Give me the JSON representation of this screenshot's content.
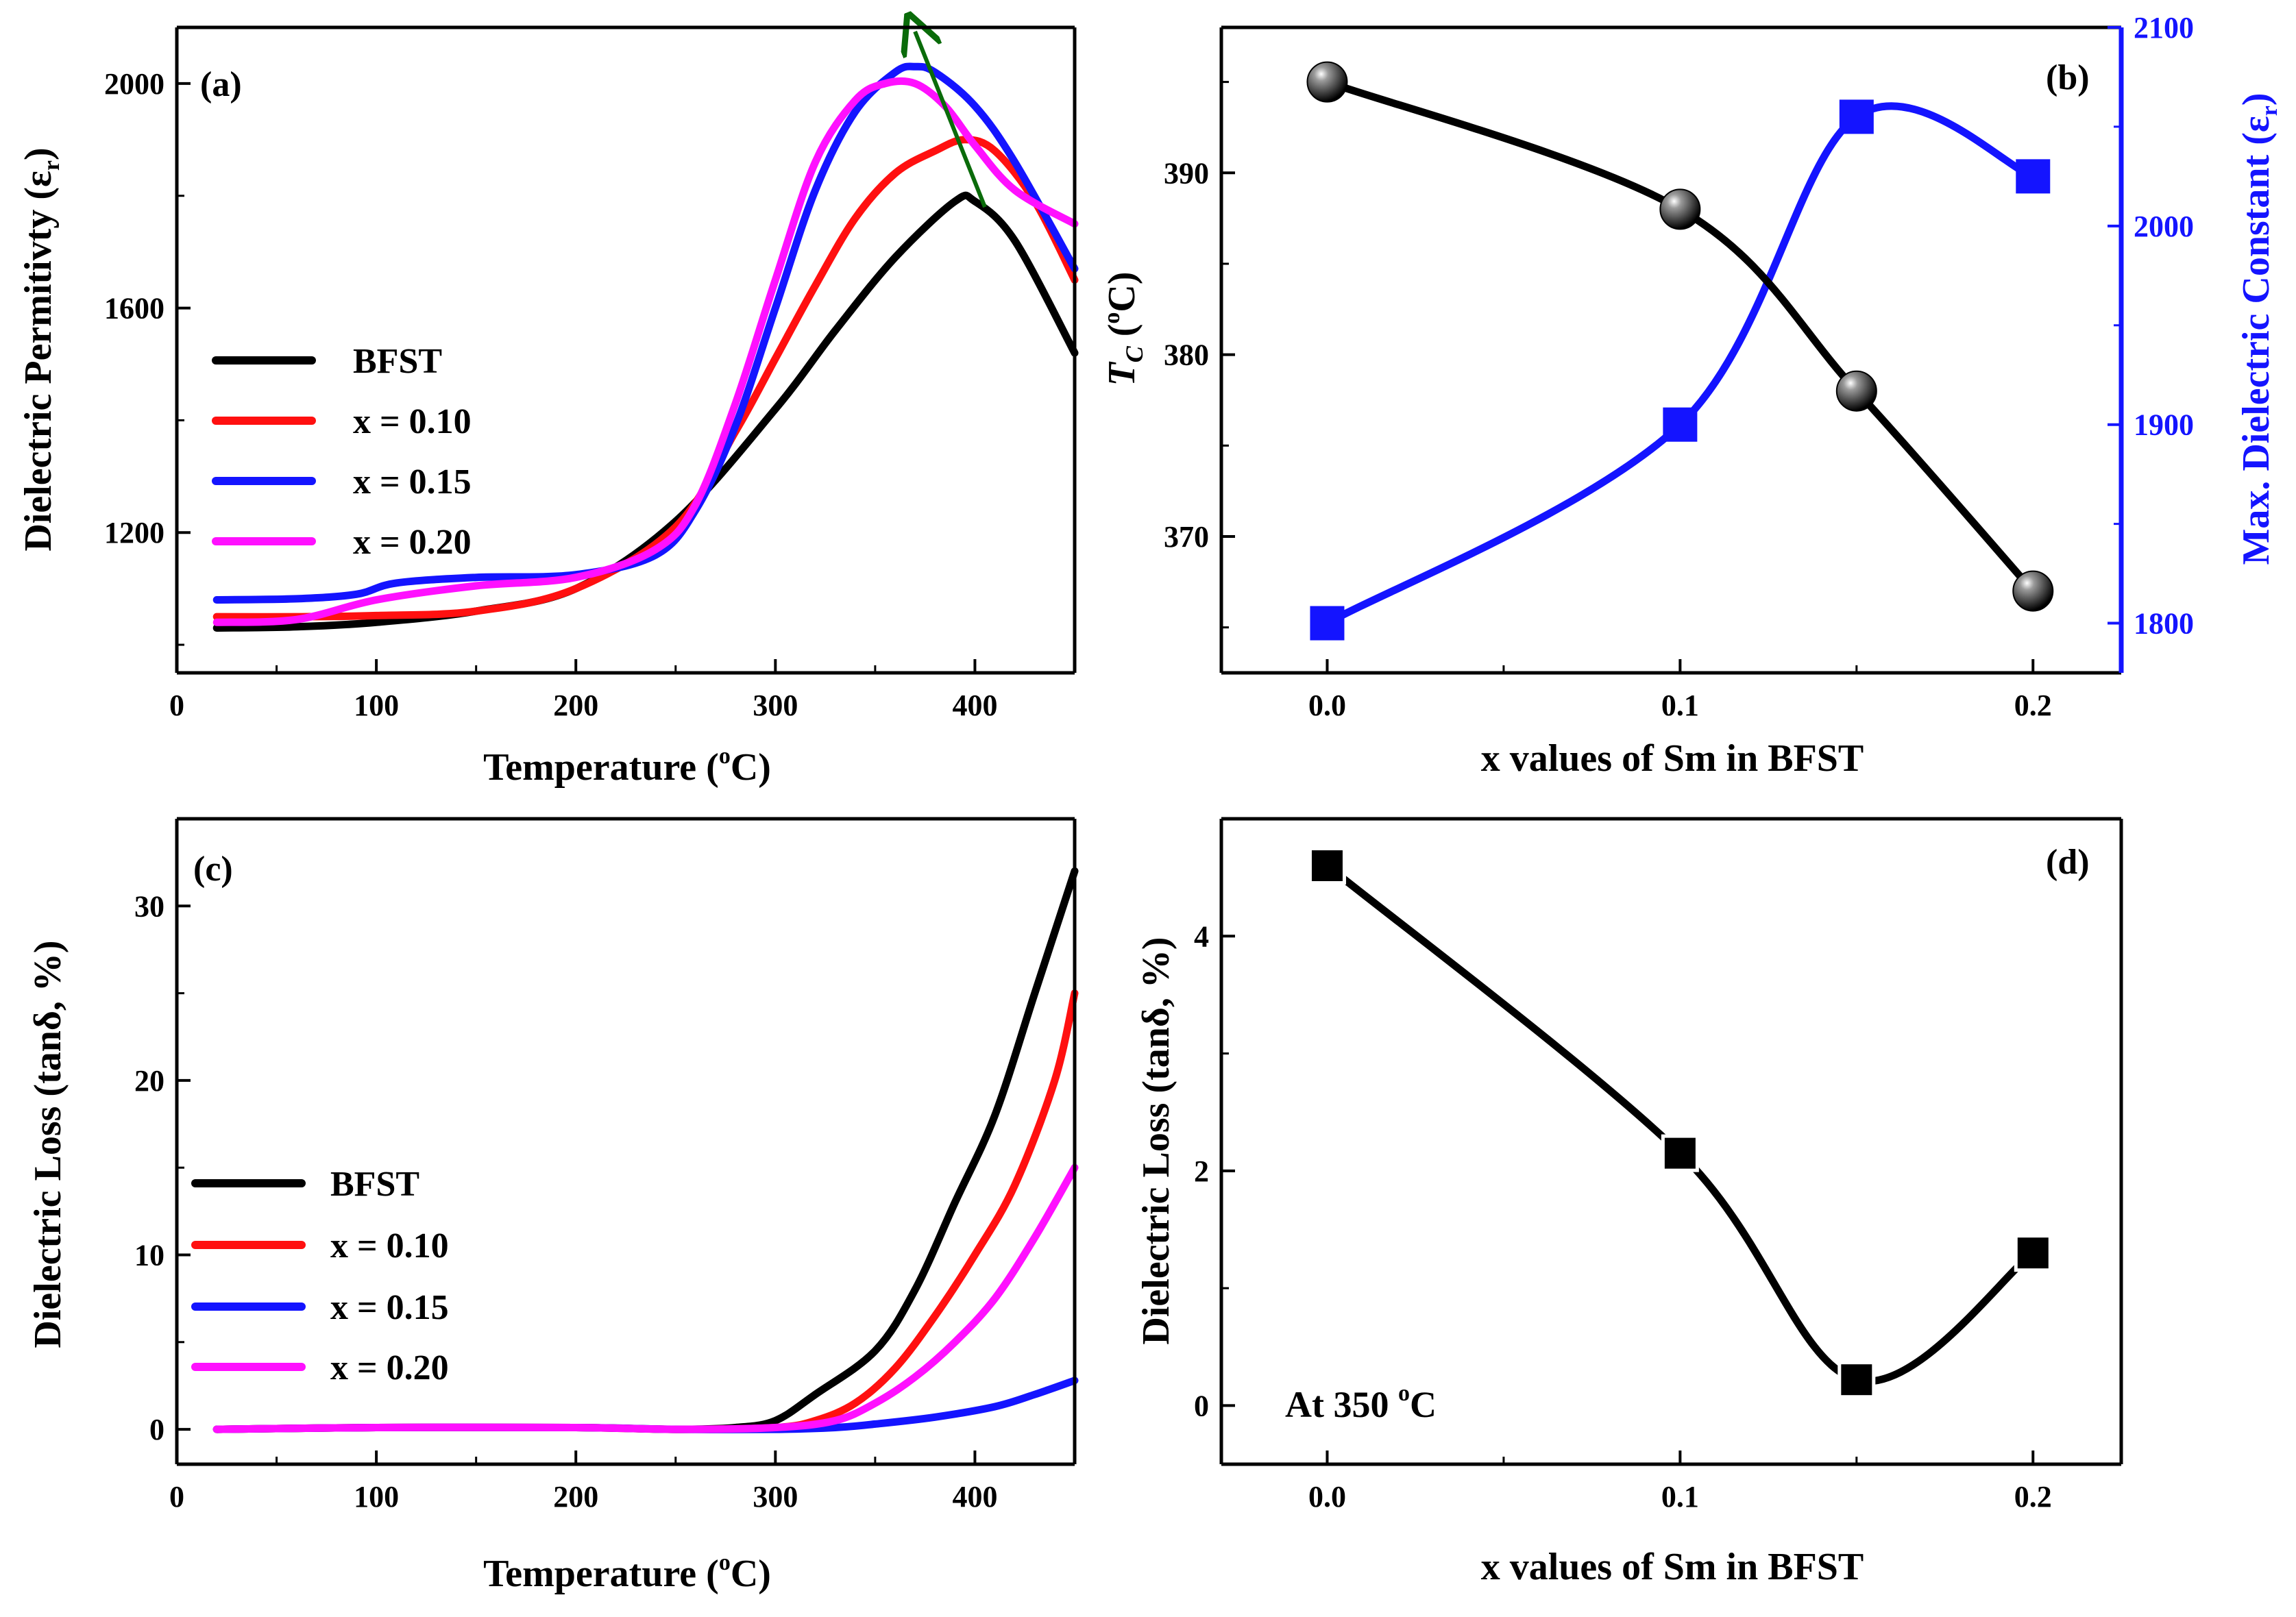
{
  "colors": {
    "black": "#000000",
    "red": "#ff1010",
    "blue": "#1414ff",
    "magenta": "#ff10ff",
    "green": "#0a6b0a",
    "sphere_light": "#9a9a9a"
  },
  "chart_data": [
    {
      "panel": "(a)",
      "type": "line",
      "title": "",
      "xlabel": "Temperature (",
      "xlabel_sup": "o",
      "xlabel_tail": "C)",
      "ylabel": "Dielectric Permitivty (ε",
      "ylabel_sub": "r",
      "ylabel_tail": ")",
      "xlim": [
        0,
        450
      ],
      "ylim": [
        950,
        2100
      ],
      "xticks": [
        "0",
        "100",
        "200",
        "300",
        "400"
      ],
      "yticks": [
        "1200",
        "1600",
        "2000"
      ],
      "xtick_values": [
        0,
        100,
        200,
        300,
        400
      ],
      "ytick_values": [
        1200,
        1600,
        2000
      ],
      "legend_position": "middle-left",
      "series": [
        {
          "name": "BFST",
          "color": "#000000",
          "x": [
            20,
            60,
            100,
            150,
            200,
            250,
            300,
            330,
            360,
            390,
            400,
            420,
            450
          ],
          "y": [
            1030,
            1032,
            1040,
            1060,
            1100,
            1220,
            1420,
            1560,
            1690,
            1790,
            1790,
            1720,
            1520
          ]
        },
        {
          "name": "x = 0.10",
          "color": "#ff1010",
          "x": [
            20,
            60,
            100,
            150,
            200,
            250,
            280,
            300,
            320,
            340,
            360,
            380,
            395,
            410,
            430,
            450
          ],
          "y": [
            1050,
            1050,
            1052,
            1060,
            1100,
            1210,
            1380,
            1510,
            1640,
            1760,
            1840,
            1880,
            1900,
            1880,
            1790,
            1650
          ]
        },
        {
          "name": "x = 0.15",
          "color": "#1414ff",
          "x": [
            20,
            60,
            90,
            110,
            150,
            200,
            240,
            260,
            280,
            300,
            320,
            340,
            360,
            370,
            380,
            400,
            420,
            450
          ],
          "y": [
            1080,
            1082,
            1090,
            1110,
            1120,
            1125,
            1160,
            1240,
            1390,
            1600,
            1810,
            1950,
            2020,
            2030,
            2020,
            1960,
            1860,
            1670
          ]
        },
        {
          "name": "x = 0.20",
          "color": "#ff10ff",
          "x": [
            20,
            60,
            100,
            150,
            200,
            240,
            260,
            280,
            300,
            320,
            340,
            355,
            370,
            385,
            400,
            420,
            450
          ],
          "y": [
            1040,
            1045,
            1080,
            1105,
            1120,
            1170,
            1250,
            1430,
            1650,
            1860,
            1970,
            2000,
            2000,
            1960,
            1890,
            1810,
            1750
          ]
        }
      ],
      "annotations": [
        {
          "type": "arrow",
          "color": "#0a6b0a",
          "from": [
            405,
            1780
          ],
          "to": [
            370,
            2100
          ]
        }
      ]
    },
    {
      "panel": "(b)",
      "type": "scatter-line",
      "title": "",
      "xlabel": "x values of Sm in BFST",
      "ylabel": "T",
      "ylabel_sub": "C",
      "ylabel_mid": " (",
      "ylabel_sup": "o",
      "ylabel_tail": "C)",
      "ylabel_right": "Max. Dielectric Constant (ε",
      "ylabel_right_sub": "r",
      "ylabel_right_tail": ")",
      "xlim": [
        -0.03,
        0.225
      ],
      "ylim": [
        362.5,
        398
      ],
      "ylim_right": [
        1775,
        2100
      ],
      "xticks": [
        "0.0",
        "0.1",
        "0.2"
      ],
      "xtick_values": [
        0,
        0.1,
        0.2
      ],
      "yticks": [
        "370",
        "380",
        "390"
      ],
      "ytick_values": [
        370,
        380,
        390
      ],
      "yticks_right": [
        "1800",
        "1900",
        "2000",
        "2100"
      ],
      "ytick_values_right": [
        1800,
        1900,
        2000,
        2100
      ],
      "series": [
        {
          "name": "Tc",
          "axis": "left",
          "marker": "sphere",
          "color": "#000000",
          "x": [
            0.0,
            0.1,
            0.15,
            0.2
          ],
          "y": [
            395,
            388,
            378,
            367
          ]
        },
        {
          "name": "Max. Dielectric Constant",
          "axis": "right",
          "marker": "square",
          "color": "#1414ff",
          "x": [
            0.0,
            0.1,
            0.15,
            0.2
          ],
          "y": [
            1800,
            1900,
            2055,
            2025
          ]
        }
      ]
    },
    {
      "panel": "(c)",
      "type": "line",
      "title": "",
      "xlabel": "Temperature (",
      "xlabel_sup": "o",
      "xlabel_tail": "C)",
      "ylabel": "Dielectric Loss (tanδ, %)",
      "xlim": [
        0,
        450
      ],
      "ylim": [
        -2,
        35
      ],
      "xticks": [
        "0",
        "100",
        "200",
        "300",
        "400"
      ],
      "xtick_values": [
        0,
        100,
        200,
        300,
        400
      ],
      "yticks": [
        "0",
        "10",
        "20",
        "30"
      ],
      "ytick_values": [
        0,
        10,
        20,
        30
      ],
      "legend_position": "lower-left",
      "series": [
        {
          "name": "BFST",
          "color": "#000000",
          "x": [
            20,
            100,
            200,
            250,
            280,
            300,
            320,
            350,
            370,
            390,
            410,
            430,
            450
          ],
          "y": [
            0,
            0.1,
            0.1,
            0,
            0.1,
            0.5,
            2,
            4.5,
            8,
            13,
            18,
            25,
            32
          ]
        },
        {
          "name": "x = 0.10",
          "color": "#ff1010",
          "x": [
            20,
            100,
            200,
            250,
            300,
            320,
            340,
            360,
            380,
            400,
            420,
            440,
            450
          ],
          "y": [
            0,
            0.1,
            0.1,
            0,
            0.1,
            0.5,
            1.5,
            3.5,
            6.5,
            10,
            14,
            20,
            25
          ]
        },
        {
          "name": "x = 0.15",
          "color": "#1414ff",
          "x": [
            20,
            100,
            200,
            250,
            300,
            330,
            350,
            380,
            410,
            430,
            450
          ],
          "y": [
            0,
            0.1,
            0.1,
            0,
            0,
            0.1,
            0.3,
            0.7,
            1.3,
            2,
            2.8
          ]
        },
        {
          "name": "x = 0.20",
          "color": "#ff10ff",
          "x": [
            20,
            100,
            200,
            250,
            300,
            330,
            350,
            370,
            390,
            410,
            430,
            450
          ],
          "y": [
            0,
            0.1,
            0.1,
            0,
            0.1,
            0.5,
            1.5,
            3,
            5,
            7.5,
            11,
            15
          ]
        }
      ]
    },
    {
      "panel": "(d)",
      "type": "scatter-line",
      "title": "",
      "xlabel": "x values of Sm in BFST",
      "ylabel": "Dielectric Loss (tanδ, %)",
      "xlim": [
        -0.03,
        0.225
      ],
      "ylim": [
        -0.5,
        5.0
      ],
      "xticks": [
        "0.0",
        "0.1",
        "0.2"
      ],
      "xtick_values": [
        0,
        0.1,
        0.2
      ],
      "yticks": [
        "0",
        "2",
        "4"
      ],
      "ytick_values": [
        0,
        2,
        4
      ],
      "annotation_text": "At 350 ",
      "annotation_sup": "o",
      "annotation_tail": "C",
      "series": [
        {
          "name": "tanδ at 350 °C",
          "marker": "square",
          "color": "#000000",
          "x": [
            0.0,
            0.1,
            0.15,
            0.2
          ],
          "y": [
            4.6,
            2.15,
            0.22,
            1.3
          ]
        }
      ]
    }
  ]
}
